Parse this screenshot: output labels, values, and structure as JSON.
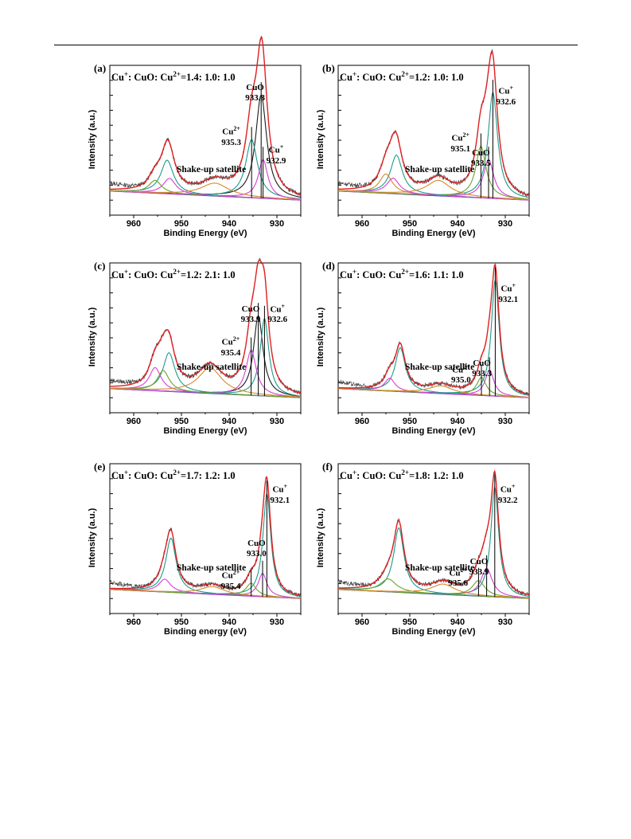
{
  "chart_data": [
    {
      "type": "line",
      "panel_label": "(a)",
      "ratio": {
        "pre": "Cu",
        "sup1": "+",
        "mid": ": CuO: Cu",
        "sup2": "2+",
        "post": "=1.4: 1.0: 1.0"
      },
      "xlabel": "Binding Energy (eV)",
      "ylabel": "Intensity (a.u.)",
      "xlim": [
        965,
        925
      ],
      "x_ticks": [
        "960",
        "950",
        "940",
        "930"
      ],
      "satellite_label": "Shake-up satellite",
      "peaks": [
        {
          "name": "CuO",
          "line1": "CuO",
          "line2": "933.3",
          "center": 933.3,
          "height": 0.8,
          "width": 1.4,
          "color": "#1a1a1a"
        },
        {
          "name": "Cu2+",
          "line1": "Cu",
          "sup": "2+",
          "line2": "935.3",
          "center": 935.3,
          "height": 0.45,
          "width": 1.5,
          "color": "#1f9a8a"
        },
        {
          "name": "Cu+",
          "line1": "Cu",
          "sup": "+",
          "line2": "932.9",
          "center": 932.9,
          "height": 0.3,
          "width": 1.2,
          "color": "#d43fd4"
        }
      ],
      "satellites": [
        {
          "center": 953.0,
          "height": 0.26,
          "width": 1.6,
          "color": "#1f9a8a"
        },
        {
          "center": 955.5,
          "height": 0.1,
          "width": 1.6,
          "color": "#6aa32a"
        },
        {
          "center": 952.5,
          "height": 0.12,
          "width": 1.6,
          "color": "#d43fd4"
        },
        {
          "center": 943.0,
          "height": 0.1,
          "width": 3.5,
          "color": "#d68a2a"
        }
      ]
    },
    {
      "type": "line",
      "panel_label": "(b)",
      "ratio": {
        "pre": "Cu",
        "sup1": "+",
        "mid": ": CuO: Cu",
        "sup2": "2+",
        "post": "=1.2: 1.0: 1.0"
      },
      "xlabel": "Binding Energy (eV)",
      "ylabel": "Intensity (a.u.)",
      "xlim": [
        965,
        925
      ],
      "x_ticks": [
        "960",
        "950",
        "940",
        "930"
      ],
      "satellite_label": "Shake-up satellite",
      "peaks": [
        {
          "name": "Cu+",
          "line1": "Cu",
          "sup": "+",
          "line2": "932.6",
          "center": 932.6,
          "height": 0.82,
          "width": 1.2,
          "color": "#1f9a8a"
        },
        {
          "name": "CuO",
          "line1": "CuO",
          "line2": "933.5",
          "center": 933.5,
          "height": 0.3,
          "width": 1.3,
          "color": "#d43fd4"
        },
        {
          "name": "Cu2+",
          "line1": "Cu",
          "sup": "2+",
          "line2": "935.1",
          "center": 935.1,
          "height": 0.4,
          "width": 1.3,
          "color": "#6aa32a"
        }
      ],
      "satellites": [
        {
          "center": 952.8,
          "height": 0.3,
          "width": 1.5,
          "color": "#1f9a8a"
        },
        {
          "center": 955.0,
          "height": 0.15,
          "width": 1.6,
          "color": "#d68a2a"
        },
        {
          "center": 953.5,
          "height": 0.12,
          "width": 1.6,
          "color": "#d43fd4"
        },
        {
          "center": 944.0,
          "height": 0.12,
          "width": 3.0,
          "color": "#d68a2a"
        }
      ]
    },
    {
      "type": "line",
      "panel_label": "(c)",
      "ratio": {
        "pre": "Cu",
        "sup1": "+",
        "mid": ": CuO: Cu",
        "sup2": "2+",
        "post": "=1.2: 2.1: 1.0"
      },
      "xlabel": "Binding Energy (eV)",
      "ylabel": "Intensity (a.u.)",
      "xlim": [
        965,
        925
      ],
      "x_ticks": [
        "960",
        "950",
        "940",
        "930"
      ],
      "satellite_label": "Shake-up satellite",
      "peaks": [
        {
          "name": "CuO",
          "line1": "CuO",
          "line2": "933.9",
          "center": 933.9,
          "height": 0.62,
          "width": 1.2,
          "color": "#1a1a1a"
        },
        {
          "name": "Cu+",
          "line1": "Cu",
          "sup": "+",
          "line2": "932.6",
          "center": 932.6,
          "height": 0.6,
          "width": 1.1,
          "color": "#1f9a8a"
        },
        {
          "name": "Cu2+",
          "line1": "Cu",
          "sup": "2+",
          "line2": "935.4",
          "center": 935.4,
          "height": 0.35,
          "width": 1.3,
          "color": "#d43fd4"
        }
      ],
      "satellites": [
        {
          "center": 952.6,
          "height": 0.3,
          "width": 1.5,
          "color": "#1f9a8a"
        },
        {
          "center": 955.5,
          "height": 0.18,
          "width": 1.5,
          "color": "#d43fd4"
        },
        {
          "center": 953.8,
          "height": 0.16,
          "width": 1.5,
          "color": "#6aa32a"
        },
        {
          "center": 944.0,
          "height": 0.2,
          "width": 3.0,
          "color": "#d68a2a"
        }
      ]
    },
    {
      "type": "line",
      "panel_label": "(d)",
      "ratio": {
        "pre": "Cu",
        "sup1": "+",
        "mid": ": CuO: Cu",
        "sup2": "2+",
        "post": "=1.6: 1.1: 1.0"
      },
      "xlabel": "Binding Energy (eV)",
      "ylabel": "Intensity (a.u.)",
      "xlim": [
        965,
        925
      ],
      "x_ticks": [
        "960",
        "950",
        "940",
        "930"
      ],
      "satellite_label": "Shake-up satellite",
      "peaks": [
        {
          "name": "Cu+",
          "line1": "Cu",
          "sup": "+",
          "line2": "932.1",
          "center": 932.1,
          "height": 0.9,
          "width": 1.0,
          "color": "#1f9a8a"
        },
        {
          "name": "CuO",
          "line1": "CuO",
          "line2": "933.3",
          "center": 933.3,
          "height": 0.2,
          "width": 1.1,
          "color": "#d43fd4"
        },
        {
          "name": "Cu2+",
          "line1": "Cu",
          "sup": "2+",
          "line2": "935.0",
          "center": 935.0,
          "height": 0.14,
          "width": 1.2,
          "color": "#6aa32a"
        }
      ],
      "satellites": [
        {
          "center": 952.0,
          "height": 0.34,
          "width": 1.3,
          "color": "#1f9a8a"
        },
        {
          "center": 954.2,
          "height": 0.1,
          "width": 1.3,
          "color": "#d43fd4"
        },
        {
          "center": 943.5,
          "height": 0.06,
          "width": 3.0,
          "color": "#d68a2a"
        }
      ]
    },
    {
      "type": "line",
      "panel_label": "(e)",
      "ratio": {
        "pre": "Cu",
        "sup1": "+",
        "mid": ": CuO: Cu",
        "sup2": "2+",
        "post": "=1.7: 1.2: 1.0"
      },
      "xlabel": "Binding energy (eV)",
      "ylabel": "Intensity (a.u.)",
      "xlim": [
        965,
        925
      ],
      "x_ticks": [
        "960",
        "950",
        "940",
        "930"
      ],
      "satellite_label": "Shake-up satellite",
      "peaks": [
        {
          "name": "Cu+",
          "line1": "Cu",
          "sup": "+",
          "line2": "932.1",
          "center": 932.1,
          "height": 0.8,
          "width": 1.0,
          "color": "#1f9a8a"
        },
        {
          "name": "CuO",
          "line1": "CuO",
          "line2": "933.0",
          "center": 933.0,
          "height": 0.18,
          "width": 1.1,
          "color": "#d43fd4"
        },
        {
          "name": "Cu2+",
          "line1": "Cu",
          "sup": "2+",
          "line2": "935.4",
          "center": 935.4,
          "height": 0.1,
          "width": 1.3,
          "color": "#6aa32a"
        }
      ],
      "satellites": [
        {
          "center": 952.2,
          "height": 0.42,
          "width": 1.3,
          "color": "#1f9a8a"
        },
        {
          "center": 953.5,
          "height": 0.1,
          "width": 1.5,
          "color": "#d43fd4"
        },
        {
          "center": 943.5,
          "height": 0.06,
          "width": 3.0,
          "color": "#d68a2a"
        }
      ]
    },
    {
      "type": "line",
      "panel_label": "(f)",
      "ratio": {
        "pre": "Cu",
        "sup1": "+",
        "mid": ": CuO: Cu",
        "sup2": "2+",
        "post": "=1.8: 1.2: 1.0"
      },
      "xlabel": "Binding Energy (eV)",
      "ylabel": "Intensity (a.u.)",
      "xlim": [
        965,
        925
      ],
      "x_ticks": [
        "960",
        "950",
        "940",
        "930"
      ],
      "satellite_label": "Shake-up satellite",
      "peaks": [
        {
          "name": "Cu+",
          "line1": "Cu",
          "sup": "+",
          "line2": "932.2",
          "center": 932.2,
          "height": 0.85,
          "width": 1.0,
          "color": "#1f9a8a"
        },
        {
          "name": "CuO",
          "line1": "CuO",
          "line2": "933.9",
          "center": 933.9,
          "height": 0.22,
          "width": 1.4,
          "color": "#d43fd4"
        },
        {
          "name": "Cu2+",
          "line1": "Cu",
          "sup": "2+",
          "line2": "935.6",
          "center": 935.6,
          "height": 0.12,
          "width": 1.6,
          "color": "#6aa32a"
        }
      ],
      "satellites": [
        {
          "center": 952.3,
          "height": 0.5,
          "width": 1.3,
          "color": "#1f9a8a"
        },
        {
          "center": 954.5,
          "height": 0.1,
          "width": 2.0,
          "color": "#6aa32a"
        },
        {
          "center": 943.0,
          "height": 0.08,
          "width": 3.0,
          "color": "#d68a2a"
        }
      ]
    }
  ],
  "colors": {
    "raw": "#3a3a3a",
    "envelope": "#e02020",
    "background": "#2333d6"
  }
}
